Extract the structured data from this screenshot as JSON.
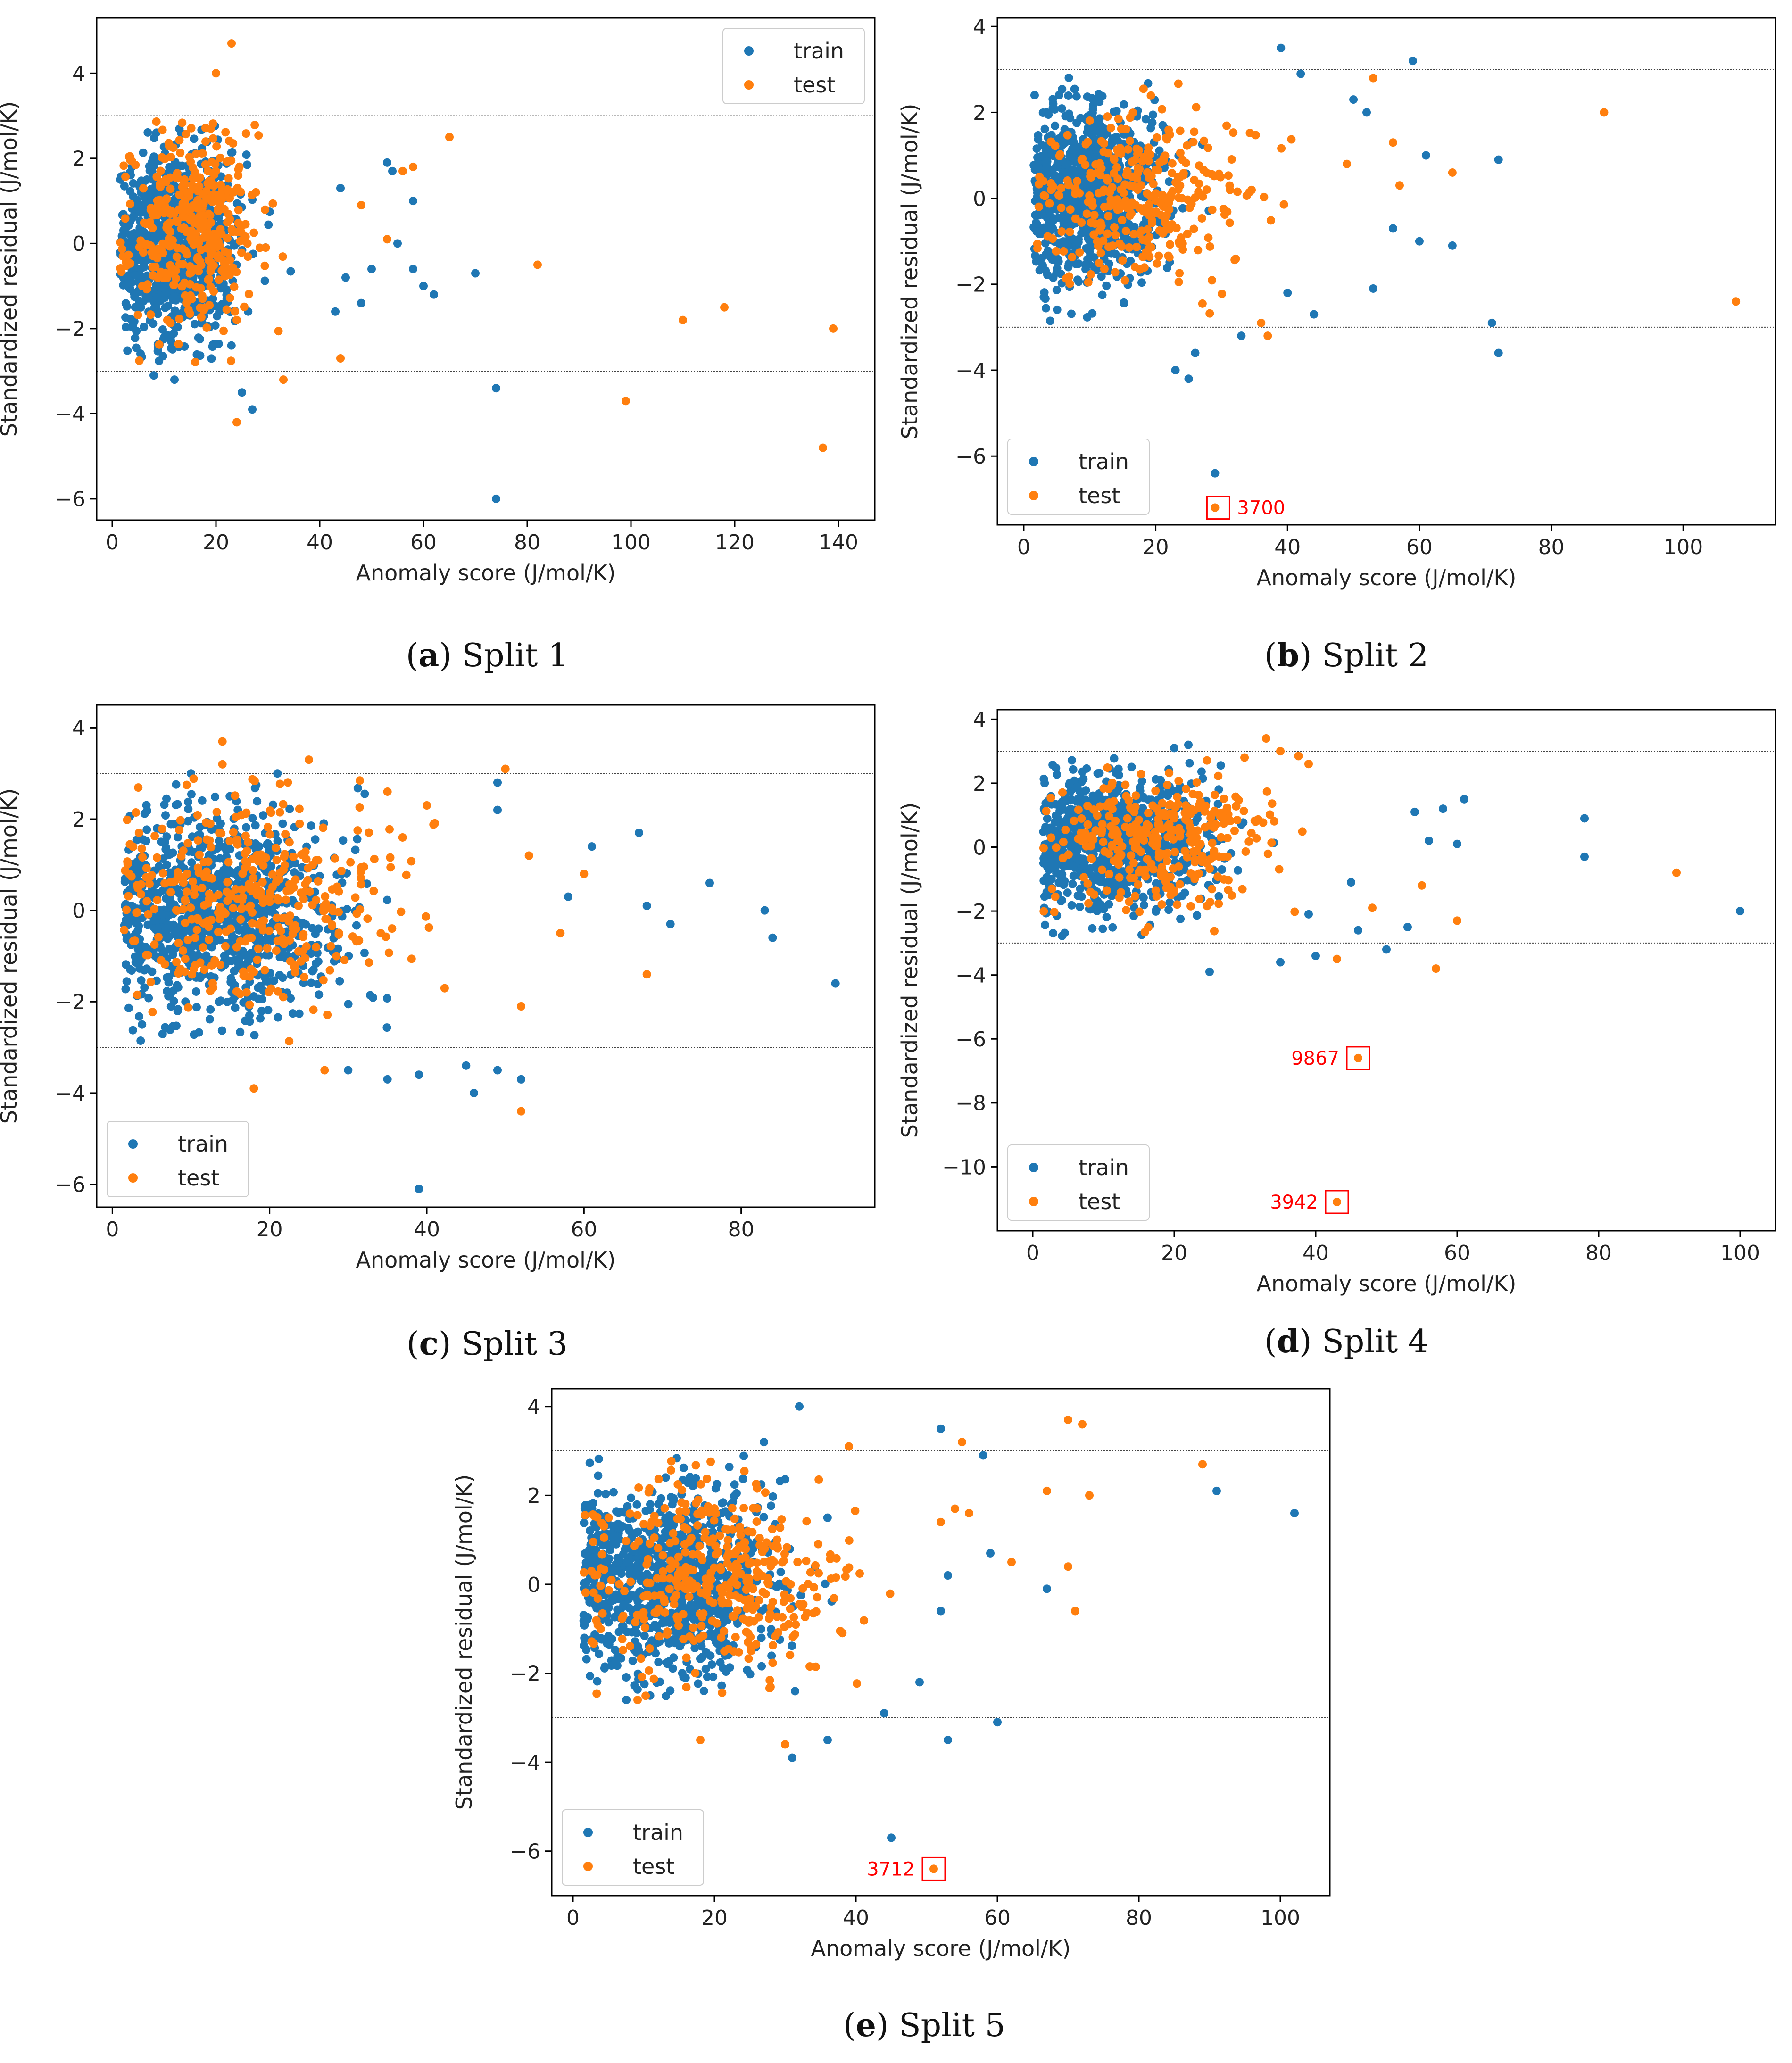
{
  "figure": {
    "captions": [
      {
        "letter": "a",
        "text": "Split 1"
      },
      {
        "letter": "b",
        "text": "Split 2"
      },
      {
        "letter": "c",
        "text": "Split 3"
      },
      {
        "letter": "d",
        "text": "Split 4"
      },
      {
        "letter": "e",
        "text": "Split 5"
      }
    ]
  },
  "colors": {
    "train": "#1f77b4",
    "test": "#ff7f0e",
    "annotation": "#ff0000",
    "threshold": "#444444"
  },
  "chart_data": [
    {
      "id": "split1",
      "type": "scatter",
      "title": "",
      "xlabel": "Anomaly score (J/mol/K)",
      "ylabel": "Standardized residual (J/mol/K)",
      "xlim": [
        -3,
        147
      ],
      "ylim": [
        -6.5,
        5.3
      ],
      "xticks": [
        0,
        20,
        40,
        60,
        80,
        100,
        120,
        140
      ],
      "yticks": [
        -6,
        -4,
        -2,
        0,
        2,
        4
      ],
      "threshold_lines": [
        3,
        -3
      ],
      "legend_position": "upper right",
      "series": [
        {
          "name": "train",
          "cluster": {
            "n": 950,
            "mu_x": 12,
            "sd_x": 6,
            "mu_y": 0,
            "sd_y": 1.05,
            "seed": 11
          },
          "outliers": [
            [
              74,
              -6.0
            ],
            [
              74,
              -3.4
            ],
            [
              70,
              -0.7
            ],
            [
              62,
              -1.2
            ],
            [
              60,
              -1.0
            ],
            [
              58,
              -0.6
            ],
            [
              55,
              0.0
            ],
            [
              50,
              -0.6
            ],
            [
              48,
              -1.4
            ],
            [
              44,
              1.3
            ],
            [
              53,
              1.9
            ],
            [
              54,
              1.7
            ],
            [
              58,
              1.0
            ],
            [
              45,
              -0.8
            ],
            [
              43,
              -1.6
            ],
            [
              27,
              -3.9
            ],
            [
              25,
              -3.5
            ],
            [
              12,
              -3.2
            ],
            [
              8,
              -3.1
            ]
          ]
        },
        {
          "name": "test",
          "cluster": {
            "n": 380,
            "mu_x": 16,
            "sd_x": 6.5,
            "mu_y": 0.3,
            "sd_y": 1.05,
            "seed": 23
          },
          "outliers": [
            [
              23,
              4.7
            ],
            [
              20,
              4.0
            ],
            [
              19,
              2.7
            ],
            [
              65,
              2.5
            ],
            [
              58,
              1.8
            ],
            [
              56,
              1.7
            ],
            [
              48,
              0.9
            ],
            [
              53,
              0.1
            ],
            [
              82,
              -0.5
            ],
            [
              110,
              -1.8
            ],
            [
              118,
              -1.5
            ],
            [
              139,
              -2.0
            ],
            [
              99,
              -3.7
            ],
            [
              137,
              -4.8
            ],
            [
              44,
              -2.7
            ],
            [
              33,
              -3.2
            ],
            [
              24,
              -4.2
            ]
          ]
        }
      ],
      "annotations": []
    },
    {
      "id": "split2",
      "type": "scatter",
      "title": "",
      "xlabel": "Anomaly score (J/mol/K)",
      "ylabel": "Standardized residual (J/mol/K)",
      "xlim": [
        -4,
        114
      ],
      "ylim": [
        -7.6,
        4.2
      ],
      "xticks": [
        0,
        20,
        40,
        60,
        80,
        100
      ],
      "yticks": [
        -6,
        -4,
        -2,
        0,
        2,
        4
      ],
      "threshold_lines": [
        3,
        -3
      ],
      "legend_position": "lower left",
      "series": [
        {
          "name": "train",
          "cluster": {
            "n": 900,
            "mu_x": 10,
            "sd_x": 5.5,
            "mu_y": 0.1,
            "sd_y": 1.05,
            "seed": 31
          },
          "outliers": [
            [
              39,
              3.5
            ],
            [
              59,
              3.2
            ],
            [
              42,
              2.9
            ],
            [
              50,
              2.3
            ],
            [
              52,
              2.0
            ],
            [
              61,
              1.0
            ],
            [
              72,
              0.9
            ],
            [
              56,
              -0.7
            ],
            [
              60,
              -1.0
            ],
            [
              65,
              -1.1
            ],
            [
              53,
              -2.1
            ],
            [
              44,
              -2.7
            ],
            [
              71,
              -2.9
            ],
            [
              72,
              -3.6
            ],
            [
              29,
              -6.4
            ],
            [
              25,
              -4.2
            ],
            [
              23,
              -4.0
            ],
            [
              26,
              -3.6
            ],
            [
              33,
              -3.2
            ],
            [
              40,
              -2.2
            ]
          ]
        },
        {
          "name": "test",
          "cluster": {
            "n": 320,
            "mu_x": 18,
            "sd_x": 8,
            "mu_y": 0,
            "sd_y": 1.05,
            "seed": 41
          },
          "outliers": [
            [
              88,
              2.0
            ],
            [
              53,
              2.8
            ],
            [
              56,
              1.3
            ],
            [
              57,
              0.3
            ],
            [
              65,
              0.6
            ],
            [
              49,
              0.8
            ],
            [
              108,
              -2.4
            ],
            [
              37,
              -3.2
            ],
            [
              36,
              -2.9
            ],
            [
              29,
              -7.2
            ]
          ]
        }
      ],
      "annotations": [
        {
          "label": "3700",
          "x": 29.5,
          "y": -7.2,
          "side": "right"
        }
      ]
    },
    {
      "id": "split3",
      "type": "scatter",
      "title": "",
      "xlabel": "Anomaly score (J/mol/K)",
      "ylabel": "Standardized residual (J/mol/K)",
      "xlim": [
        -2,
        97
      ],
      "ylim": [
        -6.5,
        4.5
      ],
      "xticks": [
        0,
        20,
        40,
        60,
        80
      ],
      "yticks": [
        -6,
        -4,
        -2,
        0,
        2,
        4
      ],
      "threshold_lines": [
        3,
        -3
      ],
      "legend_position": "lower left",
      "series": [
        {
          "name": "train",
          "cluster": {
            "n": 1000,
            "mu_x": 13,
            "sd_x": 8,
            "mu_y": 0,
            "sd_y": 1.1,
            "seed": 53
          },
          "outliers": [
            [
              39,
              -6.1
            ],
            [
              92,
              -1.6
            ],
            [
              84,
              -0.6
            ],
            [
              83,
              0.0
            ],
            [
              76,
              0.6
            ],
            [
              71,
              -0.3
            ],
            [
              68,
              0.1
            ],
            [
              67,
              1.7
            ],
            [
              61,
              1.4
            ],
            [
              58,
              0.3
            ],
            [
              52,
              -3.7
            ],
            [
              49,
              -3.5
            ],
            [
              46,
              -4.0
            ],
            [
              45,
              -3.4
            ],
            [
              39,
              -3.6
            ],
            [
              35,
              -3.7
            ],
            [
              49,
              2.2
            ],
            [
              49,
              2.8
            ],
            [
              10,
              3.0
            ],
            [
              21,
              3.0
            ],
            [
              30,
              -3.5
            ]
          ]
        },
        {
          "name": "test",
          "cluster": {
            "n": 380,
            "mu_x": 17,
            "sd_x": 9,
            "mu_y": 0.1,
            "sd_y": 1.05,
            "seed": 67
          },
          "outliers": [
            [
              14,
              3.7
            ],
            [
              14,
              3.2
            ],
            [
              25,
              3.3
            ],
            [
              50,
              3.1
            ],
            [
              35,
              2.6
            ],
            [
              40,
              2.3
            ],
            [
              53,
              1.2
            ],
            [
              60,
              0.8
            ],
            [
              57,
              -0.5
            ],
            [
              68,
              -1.4
            ],
            [
              52,
              -2.1
            ],
            [
              52,
              -4.4
            ],
            [
              27,
              -3.5
            ],
            [
              18,
              -3.9
            ]
          ]
        }
      ],
      "annotations": []
    },
    {
      "id": "split4",
      "type": "scatter",
      "title": "",
      "xlabel": "Anomaly score (J/mol/K)",
      "ylabel": "Standardized residual (J/mol/K)",
      "xlim": [
        -5,
        105
      ],
      "ylim": [
        -12,
        4.3
      ],
      "xticks": [
        0,
        20,
        40,
        60,
        80,
        100
      ],
      "yticks": [
        -10,
        -8,
        -6,
        -4,
        -2,
        0,
        2,
        4
      ],
      "threshold_lines": [
        3,
        -3
      ],
      "legend_position": "lower left",
      "series": [
        {
          "name": "train",
          "cluster": {
            "n": 850,
            "mu_x": 12,
            "sd_x": 6.5,
            "mu_y": 0.1,
            "sd_y": 1.05,
            "seed": 71
          },
          "outliers": [
            [
              100,
              -2.0
            ],
            [
              78,
              0.9
            ],
            [
              78,
              -0.3
            ],
            [
              61,
              1.5
            ],
            [
              58,
              1.2
            ],
            [
              56,
              0.2
            ],
            [
              60,
              0.1
            ],
            [
              54,
              1.1
            ],
            [
              53,
              -2.5
            ],
            [
              50,
              -3.2
            ],
            [
              40,
              -3.4
            ],
            [
              46,
              -2.6
            ],
            [
              45,
              -1.1
            ],
            [
              39,
              -2.1
            ],
            [
              35,
              -3.6
            ],
            [
              25,
              -3.9
            ],
            [
              20,
              3.1
            ],
            [
              22,
              3.2
            ]
          ]
        },
        {
          "name": "test",
          "cluster": {
            "n": 320,
            "mu_x": 18,
            "sd_x": 8,
            "mu_y": 0.2,
            "sd_y": 1.05,
            "seed": 83
          },
          "outliers": [
            [
              33,
              3.4
            ],
            [
              35,
              3.0
            ],
            [
              39,
              2.6
            ],
            [
              91,
              -0.8
            ],
            [
              60,
              -2.3
            ],
            [
              57,
              -3.8
            ],
            [
              55,
              -1.2
            ],
            [
              48,
              -1.9
            ],
            [
              43,
              -3.5
            ],
            [
              46,
              -6.6
            ],
            [
              43,
              -11.1
            ]
          ]
        }
      ],
      "annotations": [
        {
          "label": "9867",
          "x": 46,
          "y": -6.6,
          "side": "left"
        },
        {
          "label": "3942",
          "x": 43,
          "y": -11.1,
          "side": "left"
        }
      ]
    },
    {
      "id": "split5",
      "type": "scatter",
      "title": "",
      "xlabel": "Anomaly score (J/mol/K)",
      "ylabel": "Standardized residual (J/mol/K)",
      "xlim": [
        -3,
        107
      ],
      "ylim": [
        -7,
        4.4
      ],
      "xticks": [
        0,
        20,
        40,
        60,
        80,
        100
      ],
      "yticks": [
        -6,
        -4,
        -2,
        0,
        2,
        4
      ],
      "threshold_lines": [
        3,
        -3
      ],
      "legend_position": "lower left",
      "series": [
        {
          "name": "train",
          "cluster": {
            "n": 1000,
            "mu_x": 13,
            "sd_x": 7.5,
            "mu_y": 0.1,
            "sd_y": 1.05,
            "seed": 97
          },
          "outliers": [
            [
              32,
              4.0
            ],
            [
              52,
              3.5
            ],
            [
              58,
              2.9
            ],
            [
              91,
              2.1
            ],
            [
              102,
              1.6
            ],
            [
              59,
              0.7
            ],
            [
              67,
              -0.1
            ],
            [
              53,
              0.2
            ],
            [
              52,
              -0.6
            ],
            [
              49,
              -2.2
            ],
            [
              44,
              -2.9
            ],
            [
              45,
              -5.7
            ],
            [
              60,
              -3.1
            ],
            [
              53,
              -3.5
            ],
            [
              36,
              -3.5
            ],
            [
              31,
              -3.9
            ],
            [
              27,
              3.2
            ]
          ]
        },
        {
          "name": "test",
          "cluster": {
            "n": 400,
            "mu_x": 20,
            "sd_x": 9,
            "mu_y": 0.2,
            "sd_y": 1.05,
            "seed": 101
          },
          "outliers": [
            [
              70,
              3.7
            ],
            [
              72,
              3.6
            ],
            [
              89,
              2.7
            ],
            [
              55,
              3.2
            ],
            [
              39,
              3.1
            ],
            [
              67,
              2.1
            ],
            [
              73,
              2.0
            ],
            [
              54,
              1.7
            ],
            [
              56,
              1.6
            ],
            [
              52,
              1.4
            ],
            [
              62,
              0.5
            ],
            [
              70,
              0.4
            ],
            [
              71,
              -0.6
            ],
            [
              30,
              -3.6
            ],
            [
              18,
              -3.5
            ],
            [
              51,
              -6.4
            ]
          ]
        }
      ],
      "annotations": [
        {
          "label": "3712",
          "x": 51,
          "y": -6.4,
          "side": "left"
        }
      ]
    }
  ]
}
